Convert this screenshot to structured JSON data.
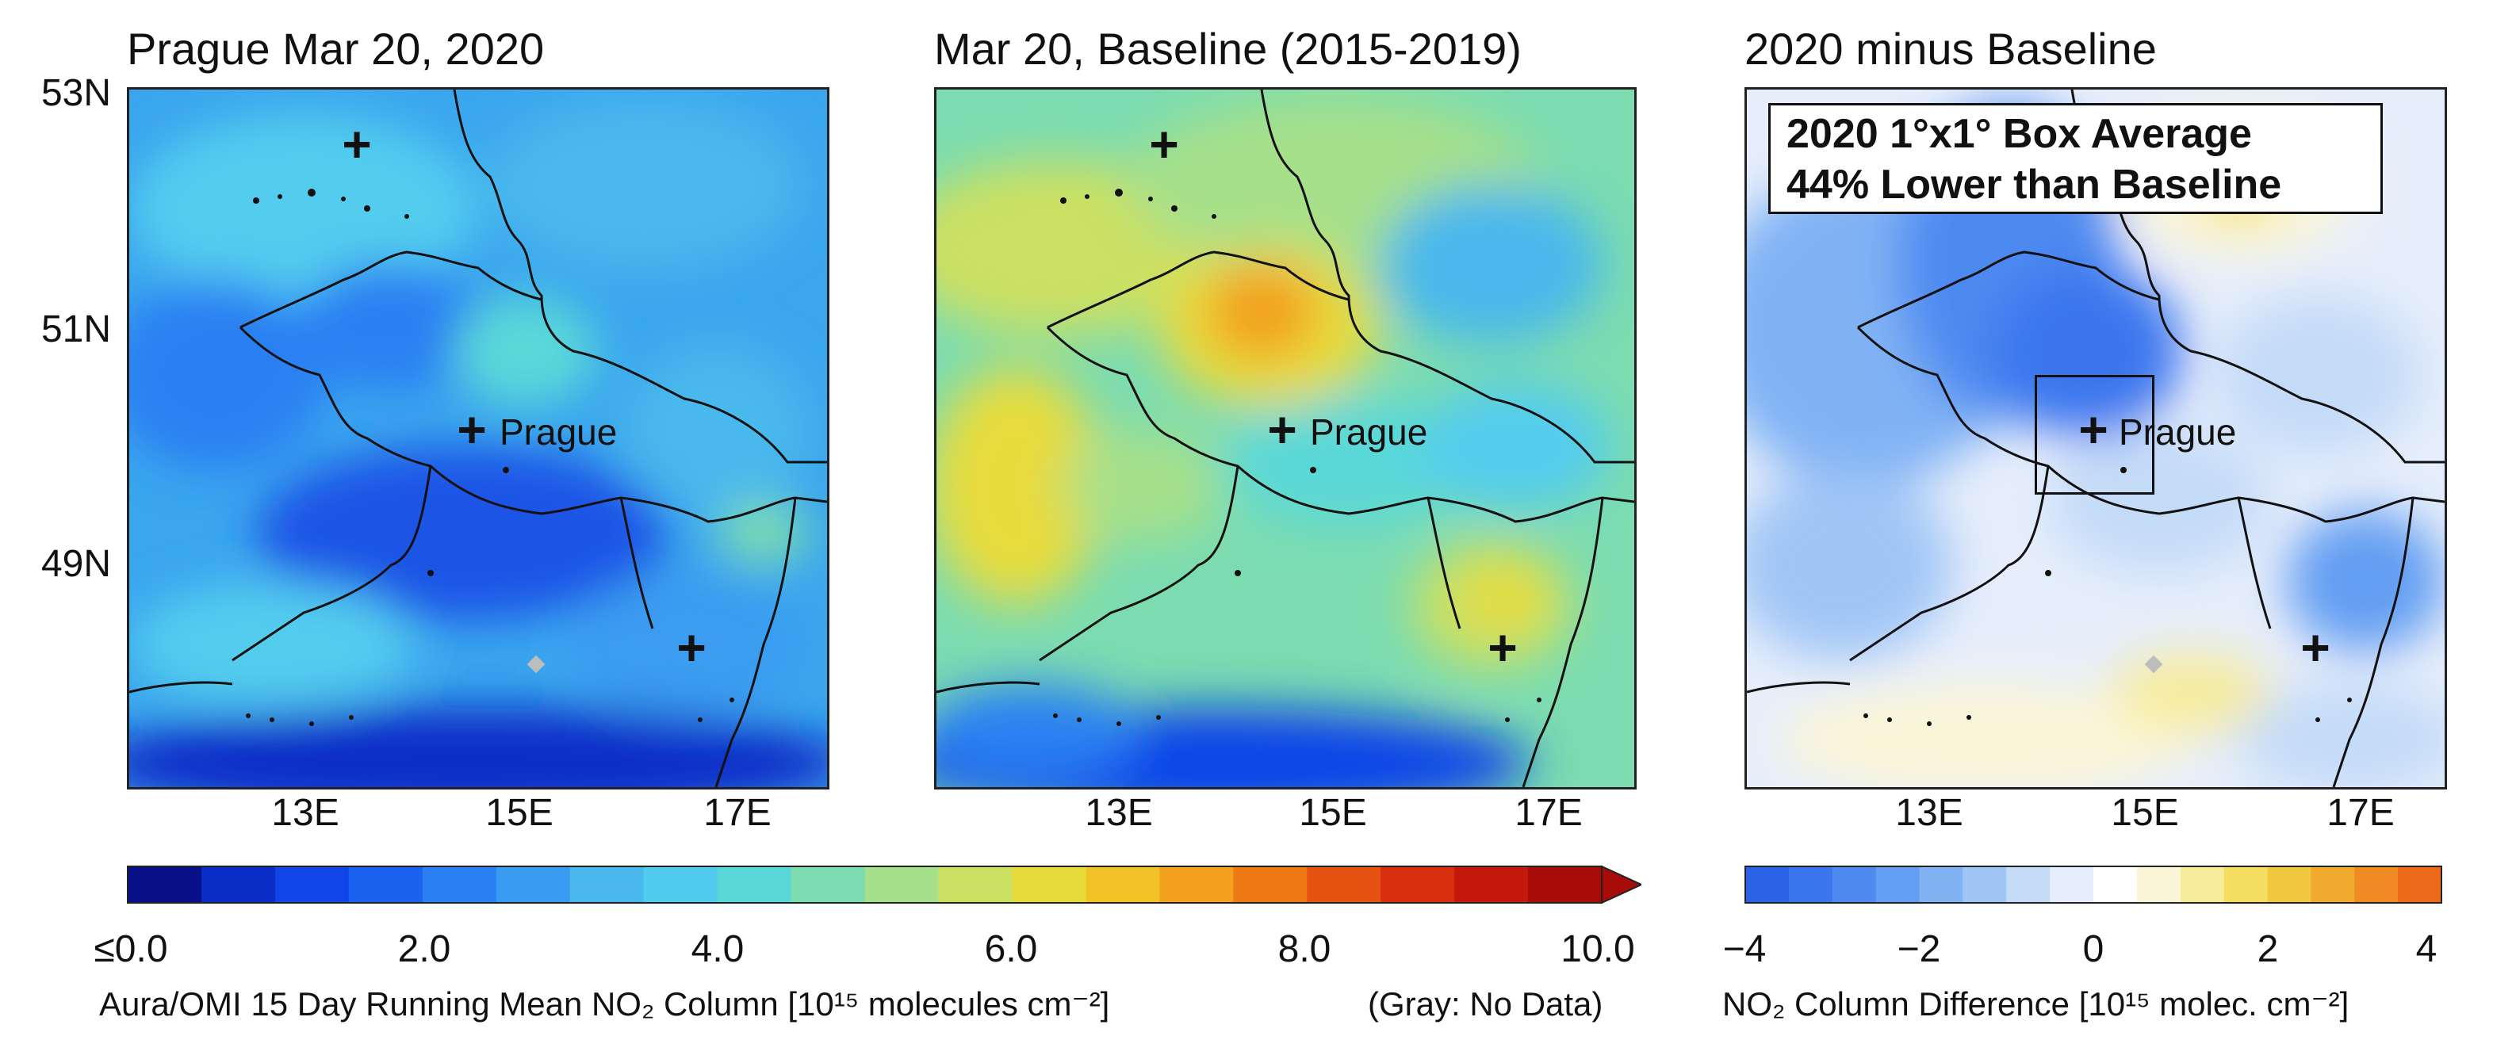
{
  "panels": [
    {
      "title": "Prague Mar 20, 2020",
      "kind": "no2"
    },
    {
      "title": "Mar 20, Baseline (2015-2019)",
      "kind": "baseline"
    },
    {
      "title": "2020 minus Baseline",
      "kind": "diff"
    }
  ],
  "latitude_labels": [
    "53N",
    "51N",
    "49N"
  ],
  "longitude_labels": [
    "13E",
    "15E",
    "17E"
  ],
  "city": {
    "name": "Prague"
  },
  "info_box": {
    "line1": "2020 1°x1° Box Average",
    "line2": "44% Lower than Baseline"
  },
  "colorbar_left": {
    "ticks": [
      "≤0.0",
      "2.0",
      "4.0",
      "6.0",
      "8.0",
      "10.0"
    ],
    "label": "Aura/OMI 15 Day Running Mean NO₂ Column [10¹⁵ molecules cm⁻²]",
    "note": "(Gray: No Data)",
    "colors": [
      "#08108a",
      "#0a2dc8",
      "#1045e8",
      "#1a63f0",
      "#2a80f2",
      "#3a9cf0",
      "#4ab8ec",
      "#52ccee",
      "#5ad8d8",
      "#7cdcb0",
      "#a6e08a",
      "#cce062",
      "#e8dc3c",
      "#f2c228",
      "#f2a01e",
      "#ee7a16",
      "#e65212",
      "#d8300e",
      "#c4180c",
      "#a80c08"
    ]
  },
  "colorbar_right": {
    "ticks": [
      "−4",
      "−2",
      "0",
      "2",
      "4"
    ],
    "label": "NO₂ Column Difference [10¹⁵ molec. cm⁻²]",
    "colors": [
      "#2a63e8",
      "#3a76ee",
      "#4e8af0",
      "#649ef2",
      "#80b2f4",
      "#a0c6f6",
      "#c4dbf8",
      "#e6eefb",
      "#ffffff",
      "#fbf6d8",
      "#f7ec9c",
      "#f4de62",
      "#f2c83e",
      "#f2aa2e",
      "#f08a22",
      "#ec6a1a"
    ]
  }
}
